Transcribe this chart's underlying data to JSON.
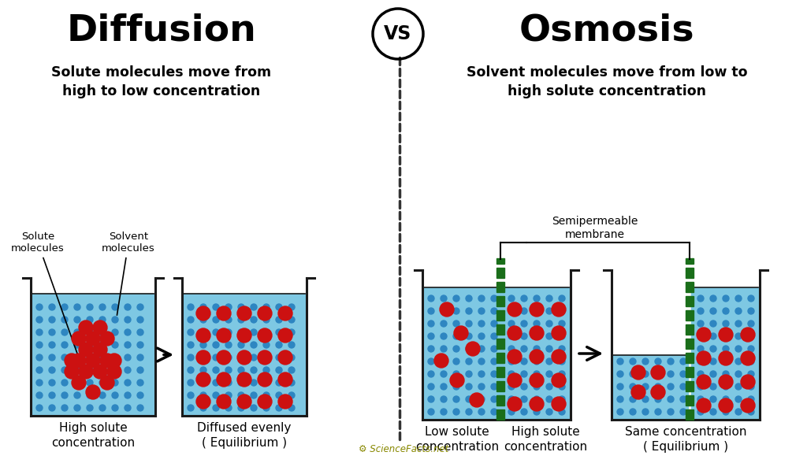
{
  "bg_color": "#ffffff",
  "title_diffusion": "Diffusion",
  "title_osmosis": "Osmosis",
  "subtitle_diffusion": "Solute molecules move from\nhigh to low concentration",
  "subtitle_osmosis": "Solvent molecules move from low to\nhigh solute concentration",
  "water_color": "#7EC8E3",
  "beaker_edge_color": "#1a1a1a",
  "solute_color": "#CC1111",
  "solvent_dot_color": "#2E86C1",
  "membrane_color": "#1a6e1a",
  "divider_color": "#333333",
  "label_diffusion_1": "High solute\nconcentration",
  "label_diffusion_2": "Diffused evenly\n( Equilibrium )",
  "label_osmosis_1_left": "Low solute\nconcentration",
  "label_osmosis_1_right": "High solute\nconcentration",
  "label_osmosis_2": "Same concentration\n( Equilibrium )",
  "annotation_solute": "Solute\nmolecules",
  "annotation_solvent": "Solvent\nmolecules",
  "annotation_membrane": "Semipermeable\nmembrane"
}
